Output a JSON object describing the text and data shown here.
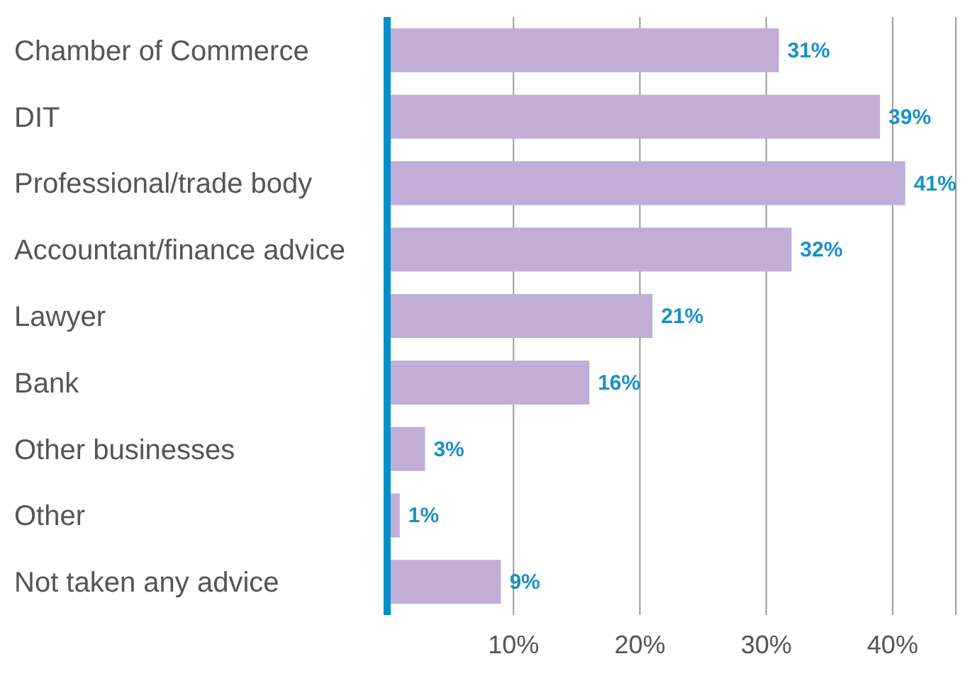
{
  "chart_data": {
    "type": "bar",
    "orientation": "horizontal",
    "categories": [
      "Chamber of Commerce",
      "DIT",
      "Professional/trade body",
      "Accountant/finance advice",
      "Lawyer",
      "Bank",
      "Other businesses",
      "Other",
      "Not taken any advice"
    ],
    "values": [
      31,
      39,
      41,
      32,
      21,
      16,
      3,
      1,
      9
    ],
    "value_labels": [
      "31%",
      "39%",
      "41%",
      "32%",
      "21%",
      "16%",
      "3%",
      "1%",
      "9%"
    ],
    "color": "#c0aed6",
    "xlim": [
      0,
      45
    ],
    "xticks": [
      {
        "value": 10,
        "label": "10%"
      },
      {
        "value": 20,
        "label": "20%"
      },
      {
        "value": 30,
        "label": "30%"
      },
      {
        "value": 40,
        "label": "40%"
      }
    ],
    "grid": "x",
    "legend": false
  }
}
